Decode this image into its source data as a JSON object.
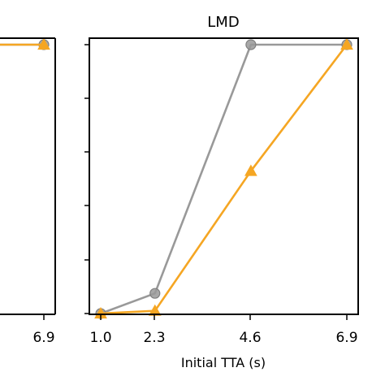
{
  "chart_data": [
    {
      "type": "line",
      "title": "",
      "xlabel": "",
      "ylabel": "",
      "x_ticks": [
        "6.9"
      ],
      "series": [
        {
          "color": "#999999",
          "marker": "circle",
          "x": [
            6.9
          ],
          "y": [
            1.0
          ]
        },
        {
          "color": "#F5A623",
          "marker": "triangle",
          "x": [
            6.9
          ],
          "y": [
            1.0
          ]
        }
      ]
    },
    {
      "type": "line",
      "title": "LMD",
      "xlabel": "Initial TTA (s)",
      "ylabel": "",
      "xlim": [
        0.8,
        7.1
      ],
      "ylim": [
        -0.01,
        1.02
      ],
      "x_ticks": [
        "1.0",
        "2.3",
        "4.6",
        "6.9"
      ],
      "series": [
        {
          "color": "#999999",
          "marker": "circle",
          "x": [
            1.0,
            2.3,
            4.6,
            6.9
          ],
          "y": [
            0.0,
            0.075,
            1.0,
            1.0
          ]
        },
        {
          "color": "#F5A623",
          "marker": "triangle",
          "x": [
            1.0,
            2.3,
            4.6,
            6.9
          ],
          "y": [
            0.0,
            0.01,
            0.53,
            1.0
          ]
        }
      ]
    }
  ]
}
